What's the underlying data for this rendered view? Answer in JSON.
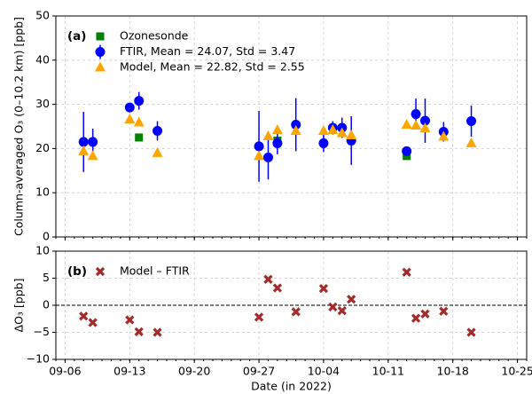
{
  "chart_data": [
    {
      "type": "scatter",
      "annotation": "(a)",
      "ylabel": "Column-averaged O₃ (0–10.2 km) [ppb]",
      "ylim": [
        0,
        50
      ],
      "yticks": [
        0,
        10,
        20,
        30,
        40,
        50
      ],
      "grid": true,
      "legend": "upper left",
      "series": [
        {
          "name": "Ozonesonde",
          "color": "#008000",
          "marker": "square",
          "x": [
            "09-14",
            "09-29",
            "10-13"
          ],
          "values": [
            22.5,
            21.8,
            18.3
          ]
        },
        {
          "name": "FTIR, Mean = 24.07, Std = 3.47",
          "color": "#0000ff",
          "marker": "circle",
          "x": [
            "09-08",
            "09-09",
            "09-13",
            "09-14",
            "09-16",
            "09-27",
            "09-28",
            "09-29",
            "10-01",
            "10-04",
            "10-05",
            "10-06",
            "10-07",
            "10-13",
            "10-14",
            "10-15",
            "10-17",
            "10-20"
          ],
          "values": [
            21.5,
            21.5,
            29.3,
            30.8,
            24.0,
            20.5,
            18.0,
            21.2,
            25.4,
            21.2,
            24.7,
            24.7,
            21.8,
            19.4,
            27.8,
            26.3,
            23.8,
            26.2
          ],
          "errors": [
            6.8,
            3.0,
            1.0,
            2.0,
            2.2,
            8.0,
            5.0,
            2.5,
            6.0,
            2.0,
            1.5,
            2.3,
            5.5,
            0.8,
            3.5,
            5.0,
            2.2,
            3.5
          ]
        },
        {
          "name": "Model, Mean = 22.82, Std = 2.55",
          "color": "#ffa500",
          "marker": "triangle",
          "x": [
            "09-08",
            "09-09",
            "09-13",
            "09-14",
            "09-16",
            "09-27",
            "09-28",
            "09-29",
            "10-01",
            "10-04",
            "10-05",
            "10-06",
            "10-07",
            "10-13",
            "10-14",
            "10-15",
            "10-17",
            "10-20"
          ],
          "values": [
            19.4,
            18.3,
            26.6,
            25.9,
            19.0,
            18.3,
            22.8,
            24.2,
            24.0,
            24.0,
            24.2,
            23.5,
            23.0,
            25.4,
            25.2,
            24.6,
            22.7,
            21.2
          ]
        }
      ]
    },
    {
      "type": "scatter",
      "annotation": "(b)",
      "ylabel": "ΔO₃ [ppb]",
      "xlabel": "Date (in 2022)",
      "xlim": [
        "09-05",
        "10-26"
      ],
      "xticks": [
        "09-06",
        "09-13",
        "09-20",
        "09-27",
        "10-04",
        "10-11",
        "10-18",
        "10-25"
      ],
      "ylim": [
        -10,
        10
      ],
      "yticks": [
        {
          "value": -10,
          "label": "−10"
        },
        {
          "value": -5,
          "label": "−5"
        },
        0,
        5,
        10
      ],
      "grid": true,
      "zero_line": true,
      "legend": "upper left",
      "series": [
        {
          "name": "Model – FTIR",
          "color": "#a52a2a",
          "marker": "x",
          "x": [
            "09-08",
            "09-09",
            "09-13",
            "09-14",
            "09-16",
            "09-27",
            "09-28",
            "09-29",
            "10-01",
            "10-04",
            "10-05",
            "10-06",
            "10-07",
            "10-13",
            "10-14",
            "10-15",
            "10-17",
            "10-20"
          ],
          "values": [
            -2.0,
            -3.2,
            -2.7,
            -4.9,
            -5.0,
            -2.2,
            4.8,
            3.2,
            -1.2,
            3.1,
            -0.3,
            -1.0,
            1.1,
            6.1,
            -2.4,
            -1.6,
            -1.1,
            -5.0
          ]
        }
      ]
    }
  ]
}
